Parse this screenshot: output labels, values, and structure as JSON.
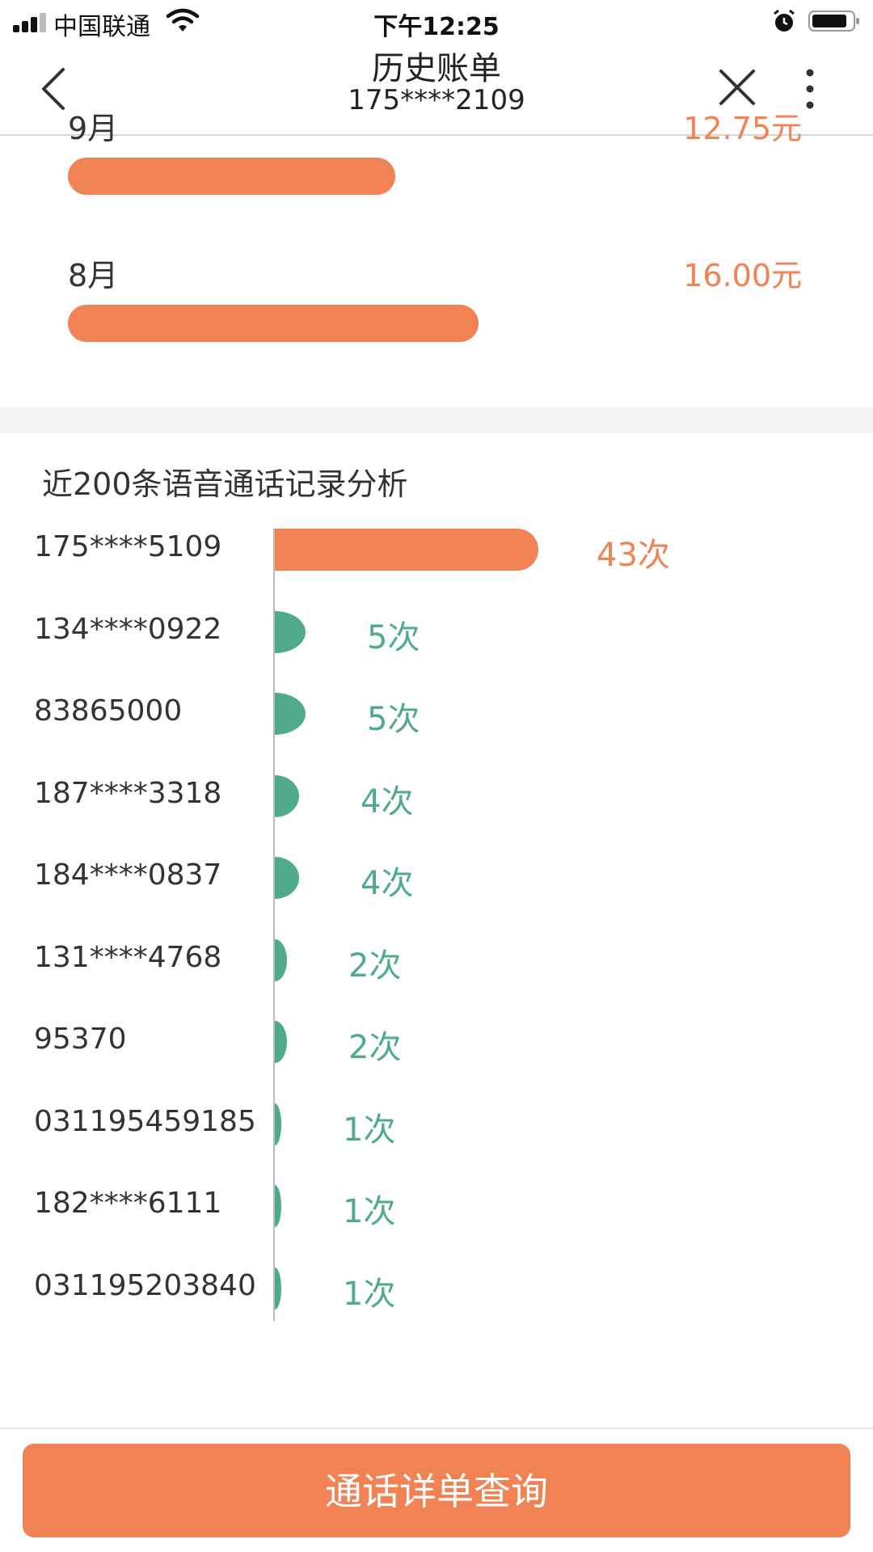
{
  "status_bar": {
    "carrier": "中国联通",
    "time": "下午12:25"
  },
  "nav": {
    "title": "历史账单",
    "subtitle": "175****2109"
  },
  "bill_months": [
    {
      "month": "9月",
      "amount": "12.75元",
      "fraction": 0.797
    },
    {
      "month": "8月",
      "amount": "16.00元",
      "fraction": 1.0
    }
  ],
  "analysis": {
    "title": "近200条语音通话记录分析",
    "rows": [
      {
        "number": "175****5109",
        "count": 43,
        "label": "43次",
        "highlight": true
      },
      {
        "number": "134****0922",
        "count": 5,
        "label": "5次",
        "highlight": false
      },
      {
        "number": "83865000",
        "count": 5,
        "label": "5次",
        "highlight": false
      },
      {
        "number": "187****3318",
        "count": 4,
        "label": "4次",
        "highlight": false
      },
      {
        "number": "184****0837",
        "count": 4,
        "label": "4次",
        "highlight": false
      },
      {
        "number": "131****4768",
        "count": 2,
        "label": "2次",
        "highlight": false
      },
      {
        "number": "95370",
        "count": 2,
        "label": "2次",
        "highlight": false
      },
      {
        "number": "031195459185",
        "count": 1,
        "label": "1次",
        "highlight": false
      },
      {
        "number": "182****6111",
        "count": 1,
        "label": "1次",
        "highlight": false
      },
      {
        "number": "031195203840",
        "count": 1,
        "label": "1次",
        "highlight": false
      }
    ]
  },
  "colors": {
    "accent": "#f08254",
    "secondary": "#4fab8c"
  },
  "footer": {
    "button_label": "通话详单查询"
  }
}
